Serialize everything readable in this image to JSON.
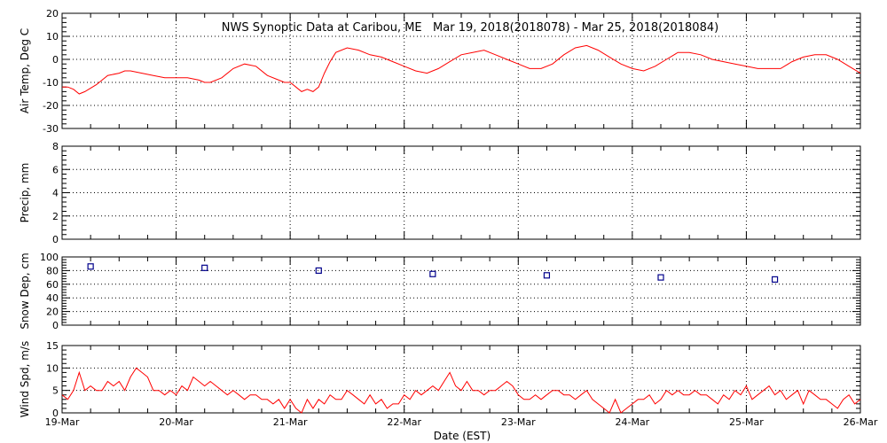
{
  "chart_data": {
    "type": "line",
    "title": "NWS Synoptic Data at Caribou, ME   Mar 19, 2018(2018078) - Mar 25, 2018(2018084)",
    "xlabel": "Date (EST)",
    "x_tick_labels": [
      "19-Mar",
      "20-Mar",
      "21-Mar",
      "22-Mar",
      "23-Mar",
      "24-Mar",
      "25-Mar",
      "26-Mar"
    ],
    "xlim": [
      0,
      7
    ],
    "colors": {
      "line": "#ff0000",
      "marker": "#00008b"
    },
    "panels": [
      {
        "name": "air-temp",
        "type": "line",
        "ylabel": "Air Temp, Deg C",
        "ylim": [
          -30,
          20
        ],
        "ytick_step": 10,
        "yticks": [
          -30,
          -20,
          -10,
          0,
          10,
          20
        ],
        "series": [
          {
            "x": [
              0,
              0.05,
              0.1,
              0.15,
              0.2,
              0.3,
              0.4,
              0.5,
              0.55,
              0.6,
              0.7,
              0.8,
              0.9,
              1.0,
              1.1,
              1.2,
              1.25,
              1.3,
              1.4,
              1.5,
              1.6,
              1.7,
              1.8,
              1.9,
              1.95,
              2.0,
              2.05,
              2.1,
              2.15,
              2.2,
              2.25,
              2.3,
              2.35,
              2.4,
              2.5,
              2.6,
              2.7,
              2.8,
              2.9,
              3.0,
              3.1,
              3.2,
              3.3,
              3.4,
              3.5,
              3.6,
              3.7,
              3.8,
              3.9,
              4.0,
              4.1,
              4.2,
              4.3,
              4.4,
              4.5,
              4.6,
              4.7,
              4.8,
              4.9,
              5.0,
              5.1,
              5.2,
              5.3,
              5.4,
              5.5,
              5.6,
              5.7,
              5.8,
              5.9,
              6.0,
              6.1,
              6.2,
              6.3,
              6.4,
              6.5,
              6.6,
              6.7,
              6.8,
              6.9,
              7.0
            ],
            "y": [
              -12,
              -12,
              -13,
              -15,
              -14,
              -11,
              -7,
              -6,
              -5,
              -5,
              -6,
              -7,
              -8,
              -8,
              -8,
              -9,
              -10,
              -10,
              -8,
              -4,
              -2,
              -3,
              -7,
              -9,
              -10,
              -10,
              -12,
              -14,
              -13,
              -14,
              -12,
              -6,
              -1,
              3,
              5,
              4,
              2,
              1,
              -1,
              -3,
              -5,
              -6,
              -4,
              -1,
              2,
              3,
              4,
              2,
              0,
              -2,
              -4,
              -4,
              -2,
              2,
              5,
              6,
              4,
              1,
              -2,
              -4,
              -5,
              -3,
              0,
              3,
              3,
              2,
              0,
              -1,
              -2,
              -3,
              -4,
              -4,
              -4,
              -1,
              1,
              2,
              2,
              0,
              -3,
              -6
            ]
          }
        ]
      },
      {
        "name": "precip",
        "type": "line",
        "ylabel": "Precip, mm",
        "ylim": [
          0,
          8
        ],
        "ytick_step": 2,
        "yticks": [
          0,
          2,
          4,
          6,
          8
        ],
        "series": [
          {
            "x": [],
            "y": []
          }
        ]
      },
      {
        "name": "snow-depth",
        "type": "scatter",
        "ylabel": "Snow Dep, cm",
        "ylim": [
          0,
          100
        ],
        "ytick_step": 20,
        "yticks": [
          0,
          20,
          40,
          60,
          80,
          100
        ],
        "series": [
          {
            "x": [
              0.25,
              1.25,
              2.25,
              3.25,
              4.25,
              5.25,
              6.25
            ],
            "y": [
              86,
              84,
              80,
              75,
              73,
              70,
              67
            ]
          }
        ]
      },
      {
        "name": "wind-speed",
        "type": "line",
        "ylabel": "Wind Spd, m/s",
        "ylim": [
          0,
          15
        ],
        "ytick_step": 5,
        "yticks": [
          0,
          5,
          10,
          15
        ],
        "series": [
          {
            "x": [
              0,
              0.05,
              0.1,
              0.15,
              0.2,
              0.25,
              0.3,
              0.35,
              0.4,
              0.45,
              0.5,
              0.55,
              0.6,
              0.65,
              0.7,
              0.75,
              0.8,
              0.85,
              0.9,
              0.95,
              1.0,
              1.05,
              1.1,
              1.15,
              1.2,
              1.25,
              1.3,
              1.35,
              1.4,
              1.45,
              1.5,
              1.55,
              1.6,
              1.65,
              1.7,
              1.75,
              1.8,
              1.85,
              1.9,
              1.95,
              2.0,
              2.05,
              2.1,
              2.15,
              2.2,
              2.25,
              2.3,
              2.35,
              2.4,
              2.45,
              2.5,
              2.55,
              2.6,
              2.65,
              2.7,
              2.75,
              2.8,
              2.85,
              2.9,
              2.95,
              3.0,
              3.05,
              3.1,
              3.15,
              3.2,
              3.25,
              3.3,
              3.35,
              3.4,
              3.45,
              3.5,
              3.55,
              3.6,
              3.65,
              3.7,
              3.75,
              3.8,
              3.85,
              3.9,
              3.95,
              4.0,
              4.05,
              4.1,
              4.15,
              4.2,
              4.25,
              4.3,
              4.35,
              4.4,
              4.45,
              4.5,
              4.55,
              4.6,
              4.65,
              4.7,
              4.75,
              4.8,
              4.85,
              4.9,
              4.95,
              5.0,
              5.05,
              5.1,
              5.15,
              5.2,
              5.25,
              5.3,
              5.35,
              5.4,
              5.45,
              5.5,
              5.55,
              5.6,
              5.65,
              5.7,
              5.75,
              5.8,
              5.85,
              5.9,
              5.95,
              6.0,
              6.05,
              6.1,
              6.15,
              6.2,
              6.25,
              6.3,
              6.35,
              6.4,
              6.45,
              6.5,
              6.55,
              6.6,
              6.65,
              6.7,
              6.75,
              6.8,
              6.85,
              6.9,
              6.95,
              7.0
            ],
            "y": [
              4,
              3,
              5,
              9,
              5,
              6,
              5,
              5,
              7,
              6,
              7,
              5,
              8,
              10,
              9,
              8,
              5,
              5,
              4,
              5,
              4,
              6,
              5,
              8,
              7,
              6,
              7,
              6,
              5,
              4,
              5,
              4,
              3,
              4,
              4,
              3,
              3,
              2,
              3,
              1,
              3,
              1,
              0,
              3,
              1,
              3,
              2,
              4,
              3,
              3,
              5,
              4,
              3,
              2,
              4,
              2,
              3,
              1,
              2,
              2,
              4,
              3,
              5,
              4,
              5,
              6,
              5,
              7,
              9,
              6,
              5,
              7,
              5,
              5,
              4,
              5,
              5,
              6,
              7,
              6,
              4,
              3,
              3,
              4,
              3,
              4,
              5,
              5,
              4,
              4,
              3,
              4,
              5,
              3,
              2,
              1,
              0,
              3,
              0,
              1,
              2,
              3,
              3,
              4,
              2,
              3,
              5,
              4,
              5,
              4,
              4,
              5,
              4,
              4,
              3,
              2,
              4,
              3,
              5,
              4,
              6,
              3,
              4,
              5,
              6,
              4,
              5,
              3,
              4,
              5,
              2,
              5,
              4,
              3,
              3,
              2,
              1,
              3,
              4,
              2,
              3
            ]
          }
        ]
      }
    ]
  }
}
